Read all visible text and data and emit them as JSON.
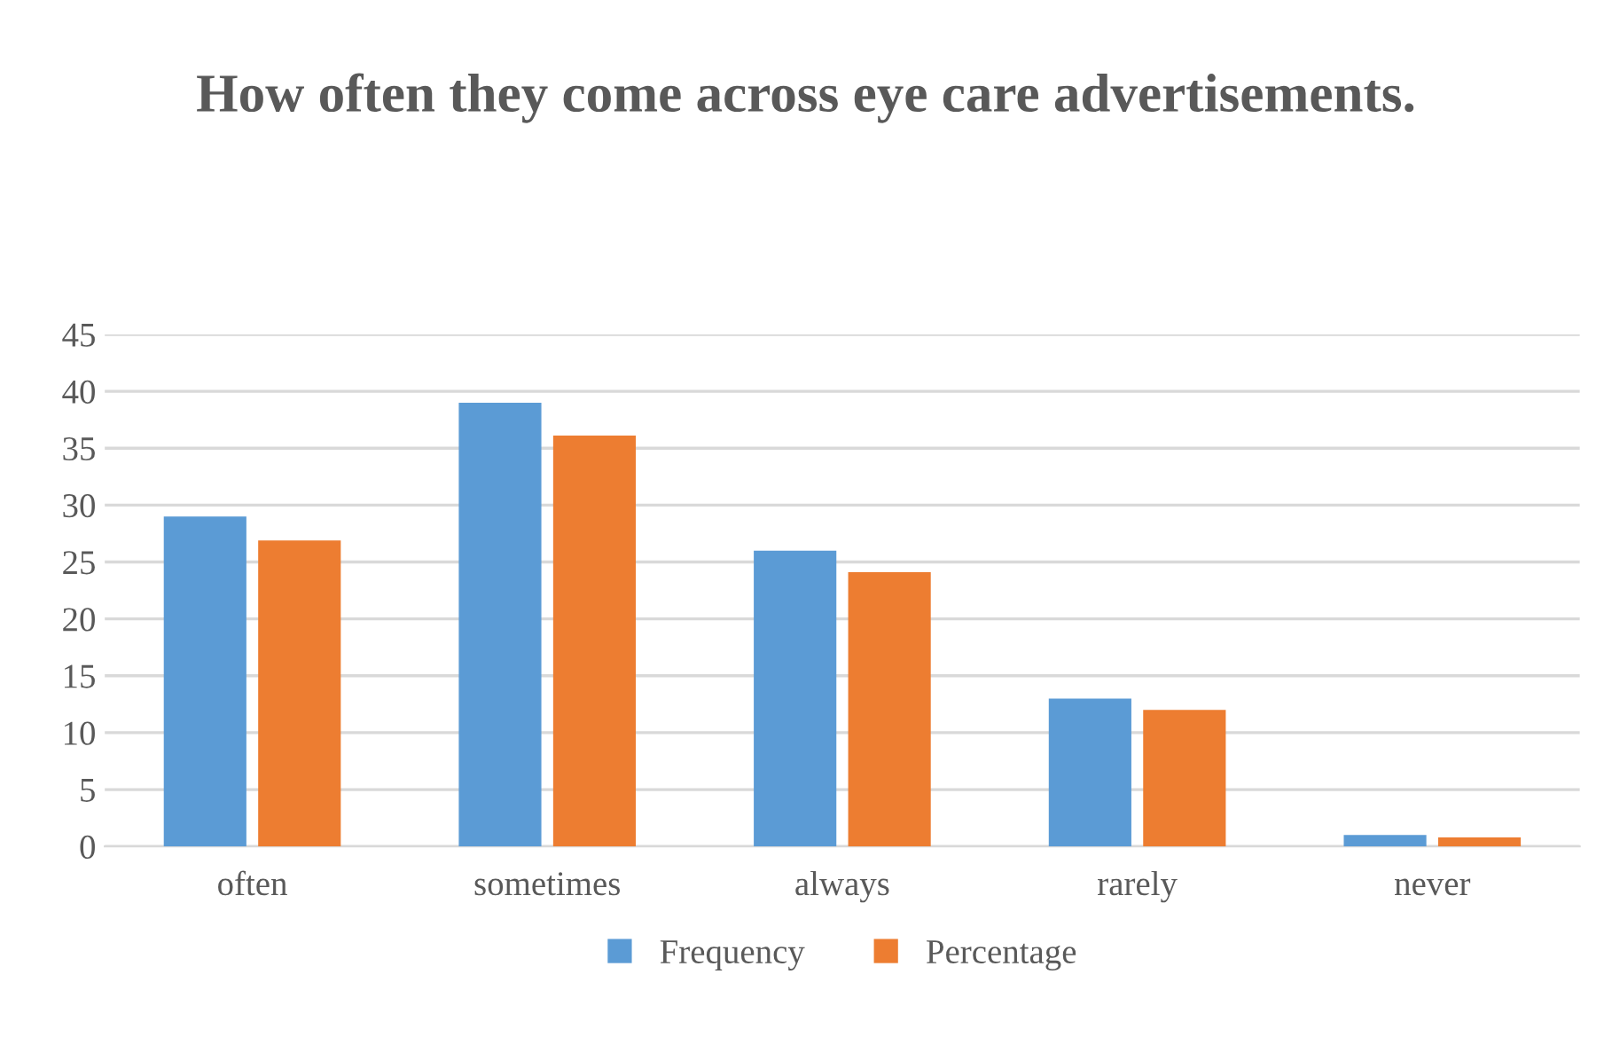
{
  "chart_data": {
    "type": "bar",
    "title": "How often they come across eye care advertisements.",
    "categories": [
      "often",
      "sometimes",
      "always",
      "rarely",
      "never"
    ],
    "series": [
      {
        "name": "Frequency",
        "color": "#5b9bd5",
        "values": [
          29,
          39,
          26,
          13,
          1
        ]
      },
      {
        "name": "Percentage",
        "color": "#ed7d31",
        "values": [
          26.9,
          36.1,
          24.1,
          12.0,
          0.8
        ]
      }
    ],
    "ylim": [
      0,
      45
    ],
    "yticks": [
      0,
      5,
      10,
      15,
      20,
      25,
      30,
      35,
      40,
      45
    ],
    "grid": "y",
    "legend": "bottom"
  }
}
